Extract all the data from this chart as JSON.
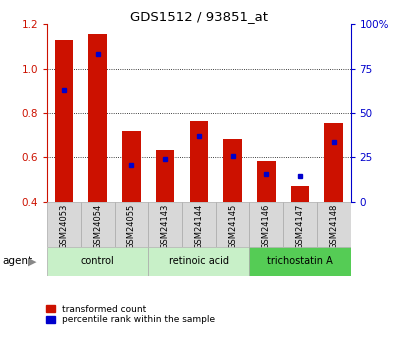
{
  "title": "GDS1512 / 93851_at",
  "samples": [
    "GSM24053",
    "GSM24054",
    "GSM24055",
    "GSM24143",
    "GSM24144",
    "GSM24145",
    "GSM24146",
    "GSM24147",
    "GSM24148"
  ],
  "red_values": [
    1.13,
    1.155,
    0.72,
    0.635,
    0.765,
    0.685,
    0.585,
    0.47,
    0.755
  ],
  "blue_values": [
    0.905,
    1.065,
    0.565,
    0.595,
    0.695,
    0.605,
    0.525,
    0.515,
    0.67
  ],
  "red_base": 0.4,
  "groups": [
    {
      "label": "control",
      "start": 0,
      "end": 3
    },
    {
      "label": "retinoic acid",
      "start": 3,
      "end": 6
    },
    {
      "label": "trichostatin A",
      "start": 6,
      "end": 9
    }
  ],
  "group_colors": [
    "#c8f0c8",
    "#c8f0c8",
    "#55cc55"
  ],
  "ylim_left": [
    0.4,
    1.2
  ],
  "ylim_right": [
    0,
    100
  ],
  "yticks_left": [
    0.4,
    0.6,
    0.8,
    1.0,
    1.2
  ],
  "yticks_right": [
    0,
    25,
    50,
    75,
    100
  ],
  "ytick_labels_right": [
    "0",
    "25",
    "50",
    "75",
    "100%"
  ],
  "red_color": "#cc1100",
  "blue_color": "#0000cc",
  "bar_width": 0.55,
  "legend_red": "transformed count",
  "legend_blue": "percentile rank within the sample",
  "agent_label": "agent",
  "tick_bg_color": "#d8d8d8"
}
